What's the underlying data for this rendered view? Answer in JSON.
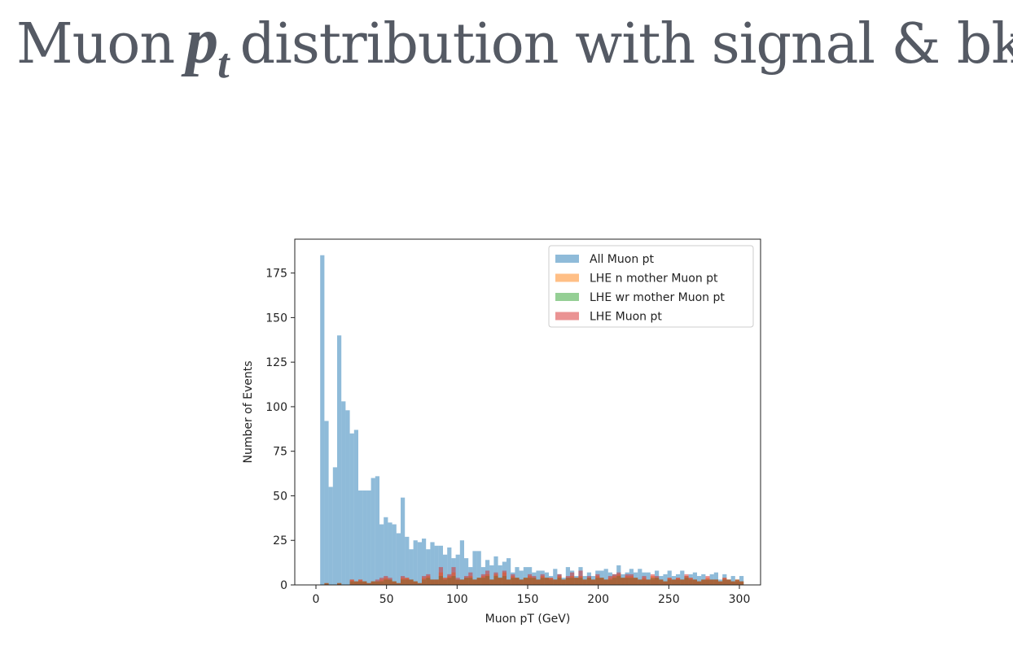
{
  "slide": {
    "title_prefix": "Muon",
    "title_symbol": "p",
    "title_symbol_sub": "t",
    "title_suffix": "distribution with signal & bkg",
    "title_color": "#555a64"
  },
  "chart_data": {
    "type": "bar",
    "title": "",
    "xlabel": "Muon pT (GeV)",
    "ylabel": "Number of Events",
    "xlim": [
      -15,
      315
    ],
    "ylim": [
      0,
      194
    ],
    "xticks": [
      0,
      50,
      100,
      150,
      200,
      250,
      300
    ],
    "yticks": [
      0,
      25,
      50,
      75,
      100,
      125,
      150,
      175
    ],
    "bin_width": 3,
    "grid": false,
    "legend_position": "top-right",
    "series": [
      {
        "name": "All Muon pt",
        "color": "#1f77b4",
        "alpha": 0.5,
        "bin_start": 3,
        "values": [
          185,
          92,
          55,
          66,
          140,
          103,
          98,
          85,
          87,
          53,
          53,
          53,
          60,
          61,
          34,
          38,
          35,
          34,
          29,
          49,
          27,
          20,
          25,
          24,
          26,
          20,
          24,
          22,
          22,
          17,
          21,
          15,
          17,
          25,
          15,
          10,
          19,
          19,
          10,
          14,
          11,
          16,
          11,
          13,
          15,
          7,
          10,
          8,
          10,
          10,
          7,
          8,
          8,
          7,
          5,
          9,
          6,
          4,
          10,
          8,
          5,
          10,
          5,
          7,
          5,
          8,
          8,
          9,
          7,
          6,
          11,
          6,
          7,
          9,
          7,
          9,
          7,
          7,
          3,
          8,
          5,
          6,
          8,
          5,
          6,
          8,
          5,
          6,
          7,
          5,
          6,
          3,
          6,
          7,
          3,
          6,
          3,
          5,
          2,
          5
        ]
      },
      {
        "name": "LHE n mother Muon pt",
        "color": "#ff7f0e",
        "alpha": 0.5,
        "bin_start": 3,
        "values": [
          0,
          1,
          0,
          0,
          1,
          0,
          0,
          3,
          2,
          3,
          2,
          1,
          2,
          2,
          3,
          4,
          3,
          2,
          1,
          4,
          4,
          3,
          2,
          1,
          4,
          5,
          3,
          3,
          7,
          4,
          5,
          7,
          3,
          3,
          4,
          5,
          3,
          4,
          5,
          6,
          3,
          6,
          4,
          7,
          3,
          5,
          4,
          3,
          4,
          5,
          4,
          3,
          5,
          4,
          4,
          3,
          5,
          3,
          4,
          5,
          4,
          5,
          3,
          4,
          3,
          5,
          4,
          3,
          4,
          5,
          6,
          4,
          5,
          5,
          4,
          3,
          4,
          3,
          5,
          4,
          3,
          2,
          4,
          3,
          4,
          3,
          5,
          4,
          3,
          2,
          3,
          4,
          3,
          3,
          2,
          4,
          3,
          2,
          3,
          2
        ]
      },
      {
        "name": "LHE wr mother Muon pt",
        "color": "#2ca02c",
        "alpha": 0.5,
        "bin_start": 3,
        "values": [
          0,
          1,
          0,
          0,
          1,
          0,
          0,
          2,
          2,
          2,
          2,
          1,
          2,
          2,
          2,
          3,
          3,
          2,
          1,
          3,
          3,
          3,
          2,
          1,
          3,
          4,
          3,
          3,
          5,
          3,
          4,
          5,
          3,
          3,
          4,
          4,
          3,
          4,
          4,
          5,
          3,
          5,
          4,
          5,
          3,
          4,
          4,
          3,
          4,
          4,
          4,
          3,
          4,
          4,
          3,
          3,
          4,
          3,
          4,
          4,
          4,
          4,
          3,
          4,
          3,
          4,
          4,
          3,
          3,
          4,
          5,
          4,
          4,
          4,
          4,
          3,
          3,
          3,
          4,
          4,
          3,
          2,
          3,
          3,
          3,
          3,
          4,
          3,
          3,
          2,
          3,
          3,
          3,
          3,
          2,
          3,
          3,
          2,
          3,
          2
        ]
      },
      {
        "name": "LHE Muon pt",
        "color": "#d62728",
        "alpha": 0.5,
        "bin_start": 3,
        "values": [
          0,
          1,
          0,
          0,
          1,
          0,
          0,
          3,
          2,
          3,
          2,
          1,
          2,
          3,
          4,
          5,
          4,
          2,
          1,
          5,
          4,
          3,
          2,
          1,
          5,
          6,
          3,
          3,
          10,
          4,
          6,
          10,
          4,
          3,
          5,
          7,
          3,
          4,
          6,
          8,
          3,
          7,
          4,
          8,
          3,
          6,
          4,
          3,
          4,
          6,
          5,
          3,
          6,
          4,
          4,
          3,
          6,
          3,
          5,
          7,
          4,
          8,
          3,
          5,
          3,
          6,
          4,
          3,
          5,
          6,
          7,
          4,
          6,
          6,
          4,
          3,
          5,
          3,
          6,
          5,
          3,
          2,
          4,
          3,
          4,
          3,
          6,
          4,
          3,
          2,
          3,
          5,
          3,
          3,
          2,
          4,
          3,
          2,
          3,
          2
        ]
      }
    ]
  }
}
